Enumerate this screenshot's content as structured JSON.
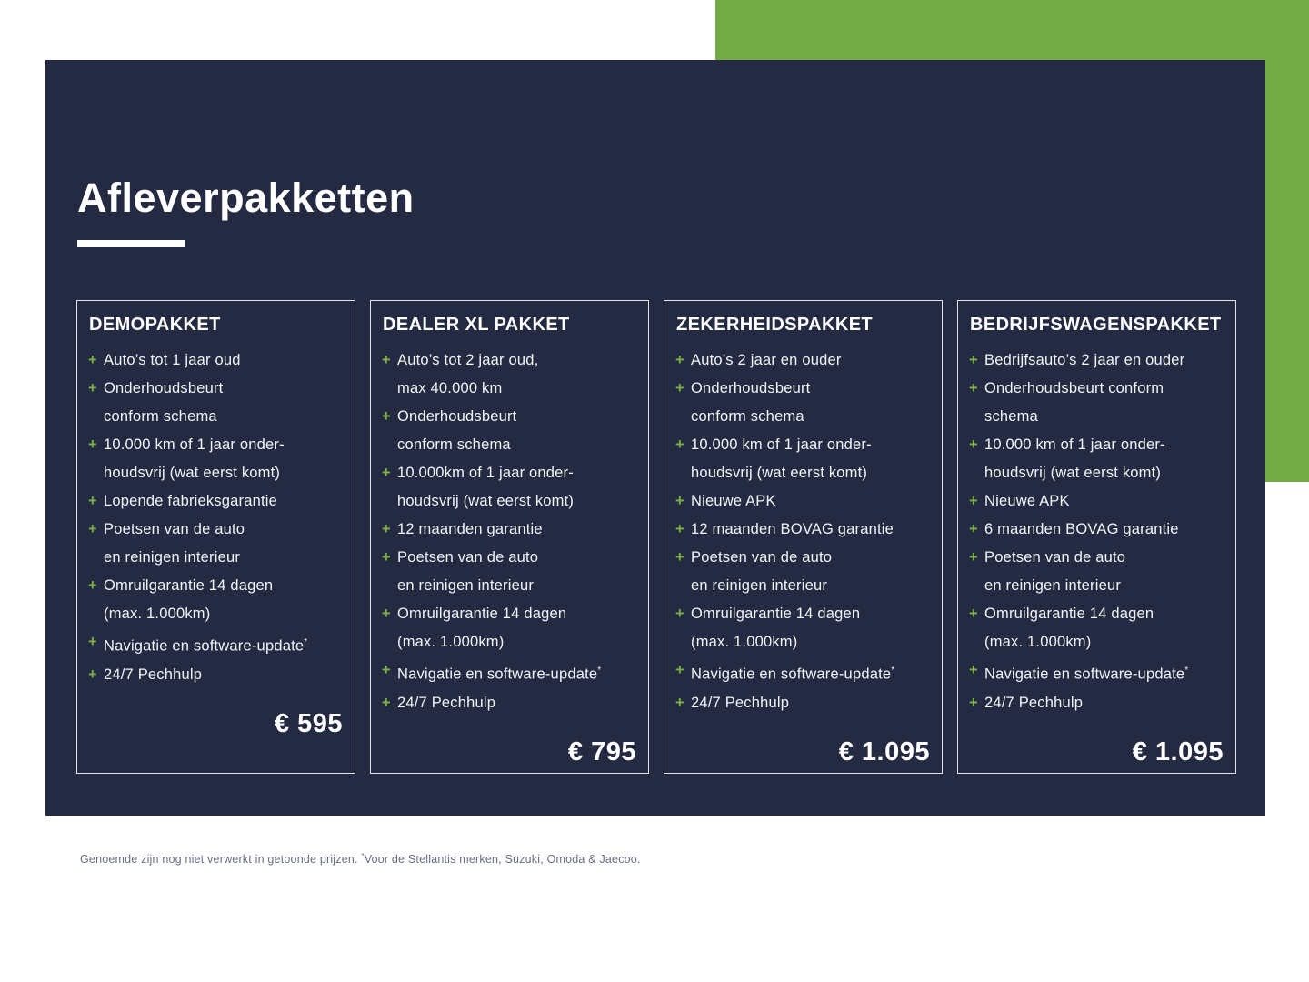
{
  "page": {
    "title": "Afleverpakketten"
  },
  "colors": {
    "panel_navy": "#232a42",
    "accent_green": "#74ab47",
    "bullet_green": "#7cb244",
    "card_border": "#dfe3ea",
    "body_text": "#f2f4f7",
    "footer_text": "#676f80"
  },
  "bullet_glyph": "+",
  "packages": [
    {
      "name": "DEMOPAKKET",
      "price": "€ 595",
      "items": [
        {
          "lines": [
            "Auto’s tot 1 jaar oud"
          ]
        },
        {
          "lines": [
            "Onderhoudsbeurt",
            "conform schema"
          ]
        },
        {
          "lines": [
            "10.000 km of 1 jaar onder-",
            "houdsvrij (wat eerst komt)"
          ]
        },
        {
          "lines": [
            "Lopende fabrieksgarantie"
          ]
        },
        {
          "lines": [
            "Poetsen van de auto",
            "en reinigen interieur"
          ]
        },
        {
          "lines": [
            "Omruilgarantie 14 dagen",
            "(max. 1.000km)"
          ]
        },
        {
          "lines": [
            "Navigatie en software-update*"
          ]
        },
        {
          "lines": [
            "24/7 Pechhulp"
          ]
        }
      ]
    },
    {
      "name": "DEALER XL PAKKET",
      "price": "€ 795",
      "items": [
        {
          "lines": [
            "Auto’s tot 2 jaar oud,",
            "max 40.000 km"
          ]
        },
        {
          "lines": [
            "Onderhoudsbeurt",
            "conform schema"
          ]
        },
        {
          "lines": [
            "10.000km of 1 jaar onder-",
            "houdsvrij (wat eerst komt)"
          ]
        },
        {
          "lines": [
            "12 maanden garantie"
          ]
        },
        {
          "lines": [
            "Poetsen van de auto",
            "en reinigen interieur"
          ]
        },
        {
          "lines": [
            "Omruilgarantie 14 dagen",
            "(max. 1.000km)"
          ]
        },
        {
          "lines": [
            "Navigatie en software-update*"
          ]
        },
        {
          "lines": [
            "24/7 Pechhulp"
          ]
        }
      ]
    },
    {
      "name": "ZEKERHEIDSPAKKET",
      "price": "€ 1.095",
      "items": [
        {
          "lines": [
            "Auto’s 2 jaar en ouder"
          ]
        },
        {
          "lines": [
            "Onderhoudsbeurt",
            "conform schema"
          ]
        },
        {
          "lines": [
            "10.000 km of 1 jaar onder-",
            "houdsvrij (wat eerst komt)"
          ]
        },
        {
          "lines": [
            "Nieuwe APK"
          ]
        },
        {
          "lines": [
            "12 maanden BOVAG garantie"
          ]
        },
        {
          "lines": [
            "Poetsen van de auto",
            "en reinigen interieur"
          ]
        },
        {
          "lines": [
            "Omruilgarantie 14 dagen",
            "(max. 1.000km)"
          ]
        },
        {
          "lines": [
            "Navigatie en software-update*"
          ]
        },
        {
          "lines": [
            "24/7 Pechhulp"
          ]
        }
      ]
    },
    {
      "name": "BEDRIJFSWAGENSPAKKET",
      "price": "€ 1.095",
      "items": [
        {
          "lines": [
            "Bedrijfsauto’s 2 jaar en ouder"
          ]
        },
        {
          "lines": [
            "Onderhoudsbeurt conform",
            "schema"
          ]
        },
        {
          "lines": [
            "10.000 km of 1 jaar onder-",
            "houdsvrij (wat eerst komt)"
          ]
        },
        {
          "lines": [
            "Nieuwe APK"
          ]
        },
        {
          "lines": [
            "6 maanden BOVAG garantie"
          ]
        },
        {
          "lines": [
            "Poetsen van de auto",
            "en reinigen interieur"
          ]
        },
        {
          "lines": [
            "Omruilgarantie 14 dagen",
            "(max. 1.000km)"
          ]
        },
        {
          "lines": [
            "Navigatie en software-update*"
          ]
        },
        {
          "lines": [
            "24/7 Pechhulp"
          ]
        }
      ]
    }
  ],
  "footer": {
    "text_before": "Genoemde zijn nog niet verwerkt in getoonde prijzen. ",
    "sup": "*",
    "text_after": "Voor de Stellantis merken, Suzuki, Omoda & Jaecoo."
  }
}
